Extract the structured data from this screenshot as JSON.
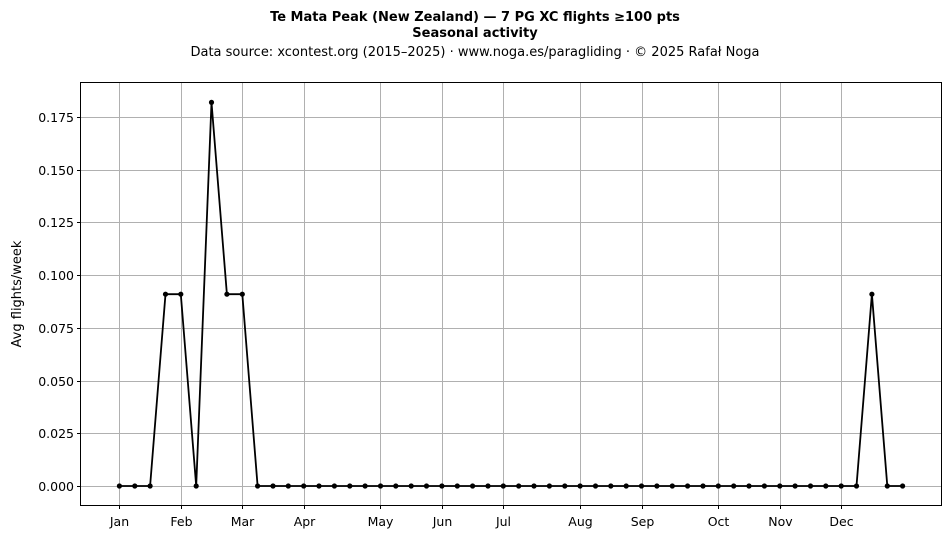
{
  "chart_data": {
    "type": "line",
    "title": "Te Mata Peak (New Zealand)  —  7 PG XC flights ≥100 pts",
    "subtitle": "Seasonal activity",
    "source_line": "Data source: xcontest.org (2015–2025)  ·  www.noga.es/paragliding  ·  © 2025 Rafał Noga",
    "xlabel": "",
    "ylabel": "Avg flights/week",
    "grid": true,
    "x_unit": "week of year",
    "xlim": [
      -2.5,
      53.5
    ],
    "ylim": [
      -0.009,
      0.191
    ],
    "y_ticks": [
      0.0,
      0.025,
      0.05,
      0.075,
      0.1,
      0.125,
      0.15,
      0.175
    ],
    "y_tick_labels": [
      "0.000",
      "0.025",
      "0.050",
      "0.075",
      "0.100",
      "0.125",
      "0.150",
      "0.175"
    ],
    "x_ticks": [
      0,
      4,
      8,
      12,
      17,
      21,
      25,
      30,
      34,
      39,
      43,
      47
    ],
    "x_tick_labels": [
      "Jan",
      "Feb",
      "Mar",
      "Apr",
      "May",
      "Jun",
      "Jul",
      "Aug",
      "Sep",
      "Oct",
      "Nov",
      "Dec"
    ],
    "series": [
      {
        "color": "#000000",
        "x": [
          0,
          1,
          2,
          3,
          4,
          5,
          6,
          7,
          8,
          9,
          10,
          11,
          12,
          13,
          14,
          15,
          16,
          17,
          18,
          19,
          20,
          21,
          22,
          23,
          24,
          25,
          26,
          27,
          28,
          29,
          30,
          31,
          32,
          33,
          34,
          35,
          36,
          37,
          38,
          39,
          40,
          41,
          42,
          43,
          44,
          45,
          46,
          47,
          48,
          49,
          50,
          51
        ],
        "values": [
          0,
          0,
          0,
          0.0909,
          0.0909,
          0,
          0.1818,
          0.0909,
          0.0909,
          0,
          0,
          0,
          0,
          0,
          0,
          0,
          0,
          0,
          0,
          0,
          0,
          0,
          0,
          0,
          0,
          0,
          0,
          0,
          0,
          0,
          0,
          0,
          0,
          0,
          0,
          0,
          0,
          0,
          0,
          0,
          0,
          0,
          0,
          0,
          0,
          0,
          0,
          0,
          0,
          0.0909,
          0,
          0
        ]
      }
    ]
  }
}
